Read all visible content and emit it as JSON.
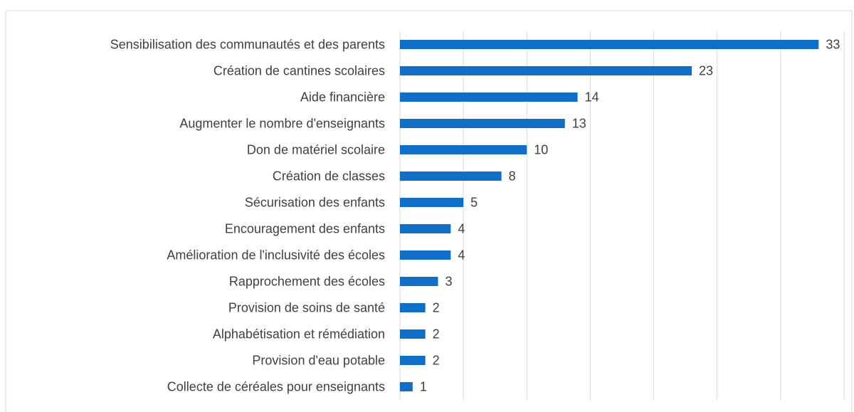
{
  "chart_data": {
    "type": "barh",
    "categories": [
      "Sensibilisation des communautés et des parents",
      "Création de cantines scolaires",
      "Aide financière",
      "Augmenter le nombre d'enseignants",
      "Don de matériel scolaire",
      "Création de classes",
      "Sécurisation des enfants",
      "Encouragement des enfants",
      "Amélioration de l'inclusivité des écoles",
      "Rapprochement des écoles",
      "Provision de soins de santé",
      "Alphabétisation et rémédiation",
      "Provision d'eau potable",
      "Collecte de céréales pour enseignants"
    ],
    "values": [
      33,
      23,
      14,
      13,
      10,
      8,
      5,
      4,
      4,
      3,
      2,
      2,
      2,
      1
    ],
    "color": "#0f6fc6",
    "xlim": [
      0,
      35
    ],
    "xticks": [
      0,
      5,
      10,
      15,
      20,
      25,
      30,
      35
    ],
    "grid": true
  }
}
